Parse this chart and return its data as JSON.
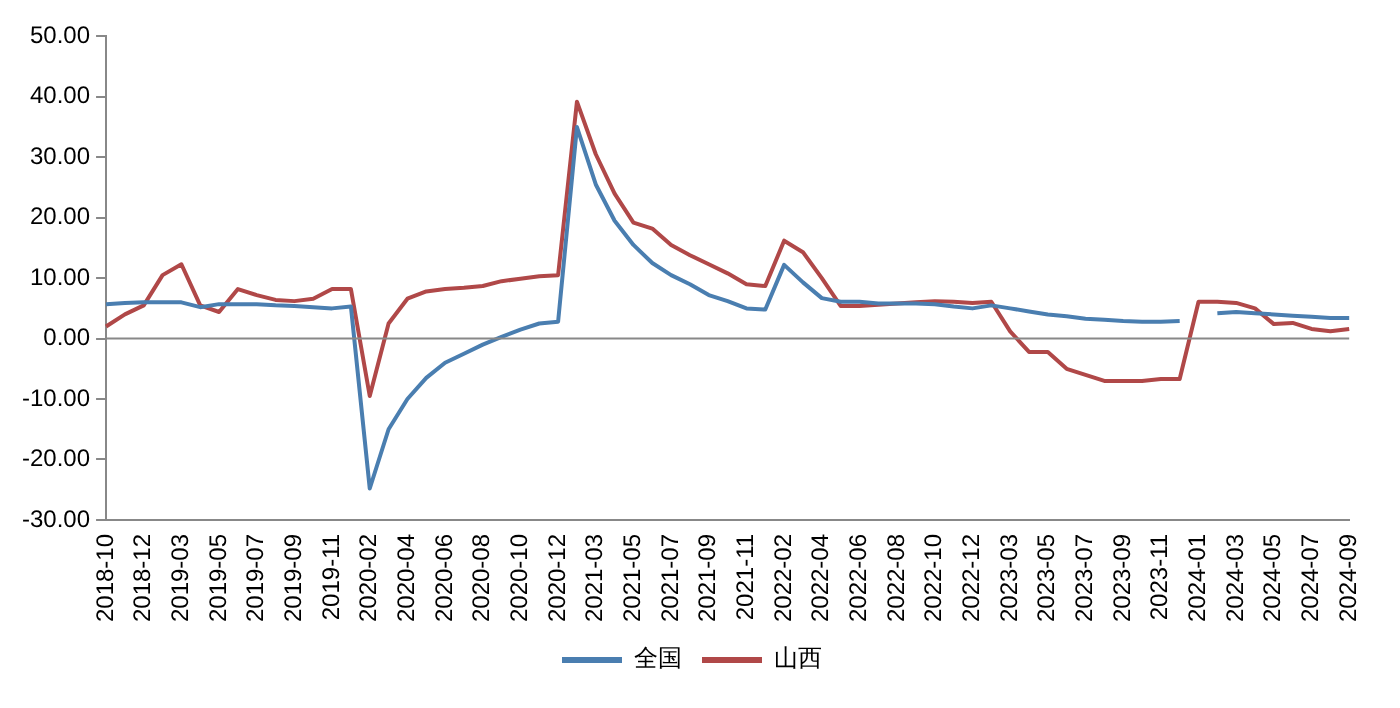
{
  "chart_data": {
    "type": "line",
    "categories": [
      "2018-10",
      null,
      "2018-12",
      null,
      "2019-03",
      null,
      "2019-05",
      null,
      "2019-07",
      null,
      "2019-09",
      null,
      "2019-11",
      null,
      "2020-02",
      null,
      "2020-04",
      null,
      "2020-06",
      null,
      "2020-08",
      null,
      "2020-10",
      null,
      "2020-12",
      null,
      "2021-03",
      null,
      "2021-05",
      null,
      "2021-07",
      null,
      "2021-09",
      null,
      "2021-11",
      null,
      "2022-02",
      null,
      "2022-04",
      null,
      "2022-06",
      null,
      "2022-08",
      null,
      "2022-10",
      null,
      "2022-12",
      null,
      "2023-03",
      null,
      "2023-05",
      null,
      "2023-07",
      null,
      "2023-09",
      null,
      "2023-11",
      null,
      "2024-01",
      null,
      "2024-03",
      null,
      "2024-05",
      null,
      "2024-07",
      null,
      "2024-09"
    ],
    "series": [
      {
        "name": "全国",
        "color": "#4a7eb0",
        "values": [
          5.7,
          5.9,
          6.0,
          6.0,
          6.0,
          5.2,
          5.7,
          5.7,
          5.7,
          5.5,
          5.4,
          5.2,
          5.0,
          5.3,
          -24.8,
          -15.0,
          -10.0,
          -6.5,
          -4.0,
          -2.5,
          -1.0,
          0.3,
          1.5,
          2.5,
          2.8,
          35.0,
          25.5,
          19.5,
          15.5,
          12.5,
          10.5,
          9.0,
          7.2,
          6.2,
          5.0,
          4.8,
          12.2,
          9.3,
          6.7,
          6.1,
          6.1,
          5.8,
          5.8,
          5.8,
          5.7,
          5.3,
          5.0,
          5.5,
          5.0,
          4.5,
          4.0,
          3.7,
          3.3,
          3.1,
          2.9,
          2.8,
          2.8,
          2.9,
          null,
          4.2,
          4.4,
          4.2,
          4.0,
          3.8,
          3.6,
          3.4,
          3.4
        ]
      },
      {
        "name": "山西",
        "color": "#b04848",
        "values": [
          2.0,
          4.0,
          5.5,
          10.5,
          12.3,
          5.5,
          4.4,
          8.2,
          7.2,
          6.4,
          6.2,
          6.6,
          8.2,
          8.2,
          -9.5,
          2.5,
          6.6,
          7.8,
          8.2,
          8.4,
          8.7,
          9.5,
          9.9,
          10.3,
          10.5,
          39.2,
          30.5,
          24.0,
          19.2,
          18.2,
          15.5,
          13.8,
          12.3,
          10.8,
          9.0,
          8.7,
          16.2,
          14.3,
          10.0,
          5.4,
          5.4,
          5.6,
          5.8,
          6.0,
          6.2,
          6.1,
          5.9,
          6.1,
          1.2,
          -2.2,
          -2.2,
          -5.0,
          -6.0,
          -7.0,
          -7.0,
          -7.0,
          -6.7,
          -6.7,
          6.1,
          6.1,
          5.9,
          5.0,
          2.4,
          2.6,
          1.6,
          1.2,
          1.6
        ]
      }
    ],
    "ylim": [
      -30,
      50
    ],
    "yticks": [
      {
        "value": -30,
        "label": "-30.00"
      },
      {
        "value": -20,
        "label": "-20.00"
      },
      {
        "value": -10,
        "label": "-10.00"
      },
      {
        "value": 0,
        "label": "0.00"
      },
      {
        "value": 10,
        "label": "10.00"
      },
      {
        "value": 20,
        "label": "20.00"
      },
      {
        "value": 30,
        "label": "30.00"
      },
      {
        "value": 40,
        "label": "40.00"
      },
      {
        "value": 50,
        "label": "50.00"
      }
    ],
    "grid": false,
    "ref_lines": [
      {
        "axis": "y",
        "value": 0,
        "color": "#888888"
      }
    ],
    "legend": "bottom",
    "marker": "none",
    "line_style": "solid"
  }
}
